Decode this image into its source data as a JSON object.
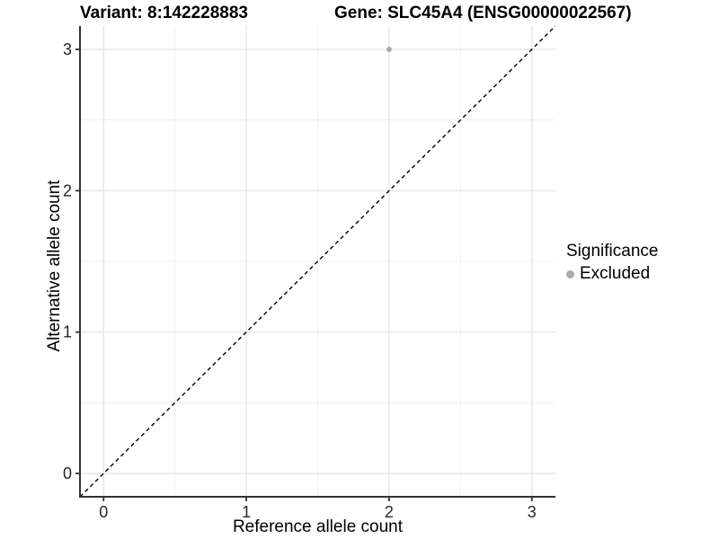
{
  "header": {
    "variant_title": "Variant: 8:142228883",
    "gene_title": "Gene: SLC45A4 (ENSG00000022567)"
  },
  "legend": {
    "title": "Significance",
    "items": [
      {
        "label": "Excluded",
        "color": "#aaaaaa"
      }
    ]
  },
  "chart_data": {
    "type": "scatter",
    "title_left": "Variant: 8:142228883",
    "title_right": "Gene: SLC45A4 (ENSG00000022567)",
    "xlabel": "Reference allele count",
    "ylabel": "Alternative allele count",
    "xlim": [
      -0.165,
      3.165
    ],
    "ylim": [
      -0.165,
      3.165
    ],
    "xtick_values": [
      0,
      1,
      2,
      3
    ],
    "xtick_labels": [
      "0",
      "1",
      "2",
      "3"
    ],
    "ytick_values": [
      0,
      1,
      2,
      3
    ],
    "ytick_labels": [
      "0",
      "1",
      "2",
      "3"
    ],
    "minor_tick_values": [
      0.5,
      1.5,
      2.5
    ],
    "grid": "major and minor, light gray, white background",
    "legend_position": "right-middle",
    "series": [
      {
        "name": "Excluded",
        "marker": "circle",
        "color": "#aaaaaa",
        "points": [
          {
            "x": 2,
            "y": 3
          }
        ]
      }
    ],
    "identity_line": {
      "equation": "y = x",
      "style": "dashed",
      "color": "#000000",
      "spans": "panel corner to corner"
    }
  },
  "colors": {
    "background": "#ffffff",
    "grid_major": "#e6e6e6",
    "grid_minor": "#f1f1f1",
    "axis_line": "#333333",
    "tick_text": "#262626",
    "point": "#aaaaaa",
    "dashed_line": "#000000"
  }
}
